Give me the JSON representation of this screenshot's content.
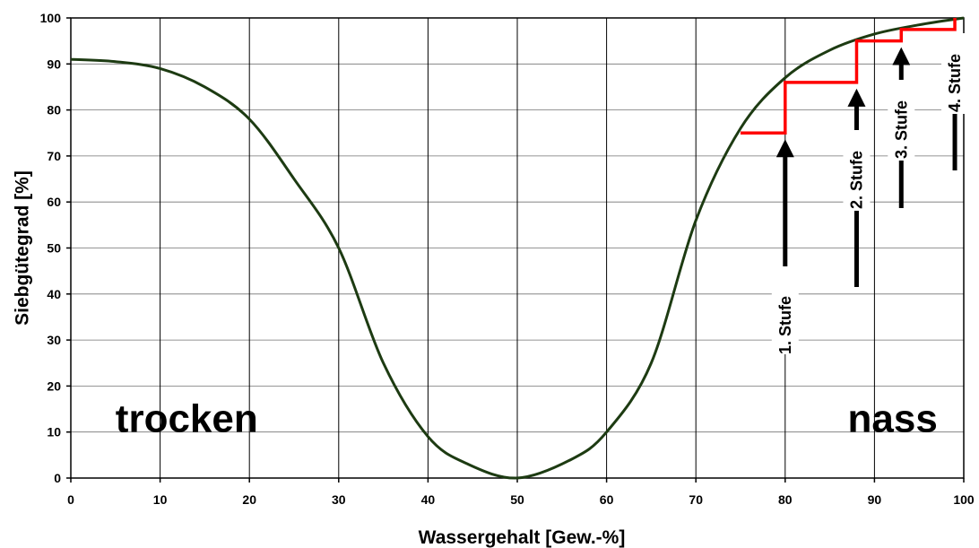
{
  "chart_data": {
    "type": "line",
    "xlabel": "Wassergehalt [Gew.-%]",
    "ylabel": "Siebgütegrad [%]",
    "xlim": [
      0,
      100
    ],
    "ylim": [
      0,
      100
    ],
    "xticks": [
      "0",
      "10",
      "20",
      "30",
      "40",
      "50",
      "60",
      "70",
      "80",
      "90",
      "100"
    ],
    "yticks": [
      "0",
      "10",
      "20",
      "30",
      "40",
      "50",
      "60",
      "70",
      "80",
      "90",
      "100"
    ],
    "grid": true,
    "colors": {
      "curve": "#1d3b12",
      "steps": "#ff0000",
      "grid": "#000000"
    },
    "series": [
      {
        "x": [
          0,
          5,
          10,
          15,
          20,
          25,
          30,
          35,
          40,
          44.5,
          50,
          56,
          60,
          65,
          70,
          75,
          80,
          85,
          90,
          95,
          100
        ],
        "y": [
          91,
          90.5,
          89,
          85,
          78,
          65,
          50,
          25,
          9,
          3,
          0,
          4,
          10,
          25,
          56,
          76,
          87,
          93,
          96.5,
          98.5,
          100
        ]
      },
      {
        "x": [
          75,
          80,
          80,
          88,
          88,
          93,
          93,
          99,
          99
        ],
        "y": [
          75,
          75,
          86,
          86,
          95,
          95,
          97.5,
          97.5,
          100
        ]
      }
    ],
    "annotations": [
      {
        "id": "trocken",
        "text": "trocken",
        "x": 5,
        "y": 13
      },
      {
        "id": "nass",
        "text": "nass",
        "x": 87,
        "y": 13
      }
    ],
    "stages": [
      {
        "label": "1. Stufe",
        "x": 80,
        "y": 75
      },
      {
        "label": "2. Stufe",
        "x": 88,
        "y": 86
      },
      {
        "label": "3. Stufe",
        "x": 93,
        "y": 95
      },
      {
        "label": "4. Stufe",
        "x": 99,
        "y": 97.5
      }
    ]
  }
}
